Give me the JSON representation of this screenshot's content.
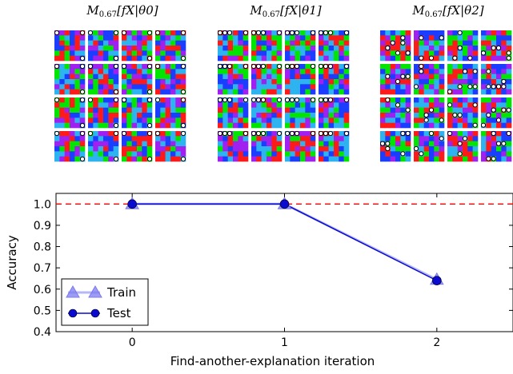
{
  "panels": [
    {
      "label_main": "M",
      "label_sub": "0.67",
      "label_rest": "[fX|θ0]"
    },
    {
      "label_main": "M",
      "label_sub": "0.67",
      "label_rest": "[fX|θ1]"
    },
    {
      "label_main": "M",
      "label_sub": "0.67",
      "label_rest": "[fX|θ2]"
    }
  ],
  "mask_colors": [
    "#ff1a1a",
    "#1a3dff",
    "#00e600",
    "#2db4f0",
    "#a020f0"
  ],
  "chart_data": {
    "type": "line",
    "xlabel": "Find-another-explanation iteration",
    "ylabel": "Accuracy",
    "x": [
      0,
      1,
      2
    ],
    "xticks": [
      "0",
      "1",
      "2"
    ],
    "xlim": [
      -0.5,
      2.5
    ],
    "ylim": [
      0.4,
      1.05
    ],
    "yticks": [
      "0.4",
      "0.5",
      "0.6",
      "0.7",
      "0.8",
      "0.9",
      "1.0"
    ],
    "reference_line": {
      "y": 1.0,
      "style": "dashed",
      "color": "#ff0000"
    },
    "series": [
      {
        "name": "Train",
        "values": [
          1.0,
          1.0,
          0.645
        ],
        "marker": "triangle",
        "color": "#7b7bf0"
      },
      {
        "name": "Test",
        "values": [
          1.0,
          1.0,
          0.64
        ],
        "marker": "circle",
        "color": "#0a0ad0"
      }
    ],
    "legend_position": "lower-left",
    "grid": false
  }
}
